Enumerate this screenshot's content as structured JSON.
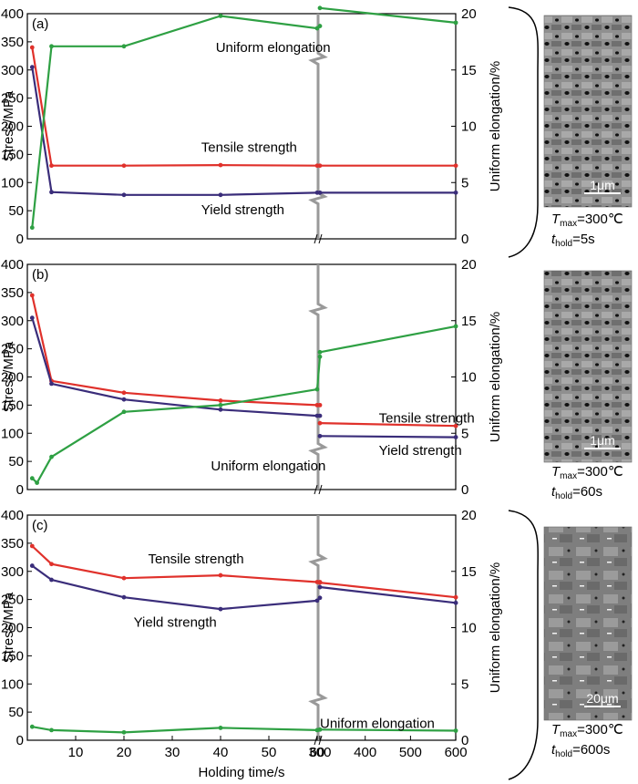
{
  "chart_data": [
    {
      "type": "line",
      "panel_label": "(a)",
      "xlabel": "",
      "ylabel_left": "Stress/MPa",
      "ylabel_right": "Uniform elongation/%",
      "ylim_left": [
        0,
        400
      ],
      "ylim_right": [
        0,
        20
      ],
      "yticks_left": [
        "0",
        "50",
        "100",
        "150",
        "200",
        "250",
        "300",
        "350",
        "400"
      ],
      "yticks_right": [
        "0",
        "5",
        "10",
        "15",
        "20"
      ],
      "series": [
        {
          "name": "Tensile strength",
          "axis": "left",
          "color": "#e0312b",
          "x": [
            1,
            5,
            20,
            40,
            60,
            300,
            600
          ],
          "values": [
            340,
            130,
            130,
            131,
            130,
            130,
            130
          ]
        },
        {
          "name": "Yield strength",
          "axis": "left",
          "color": "#3a2d7a",
          "x": [
            1,
            5,
            20,
            40,
            60,
            300,
            600
          ],
          "values": [
            305,
            83,
            78,
            78,
            82,
            82,
            82
          ]
        },
        {
          "name": "Uniform elongation",
          "axis": "right",
          "color": "#2ea043",
          "x": [
            1,
            5,
            20,
            40,
            60,
            65,
            300,
            600
          ],
          "values": [
            1,
            17.1,
            17.1,
            19.8,
            18.7,
            18.9,
            20.5,
            19.2
          ]
        }
      ],
      "annotations": [
        {
          "text": "Uniform elongation",
          "x": 39,
          "y": 340
        },
        {
          "text": "Tensile strength",
          "x": 36,
          "y": 163
        },
        {
          "text": "Yield strength",
          "x": 36,
          "y": 52
        }
      ],
      "micrograph": {
        "tmax": "300℃",
        "thold": "5s",
        "scale": "1μm"
      }
    },
    {
      "type": "line",
      "panel_label": "(b)",
      "xlabel": "",
      "ylabel_left": "Stress/MPa",
      "ylabel_right": "Uniform elongation/%",
      "ylim_left": [
        0,
        400
      ],
      "ylim_right": [
        0,
        20
      ],
      "yticks_left": [
        "0",
        "50",
        "100",
        "150",
        "200",
        "250",
        "300",
        "350",
        "400"
      ],
      "yticks_right": [
        "0",
        "5",
        "10",
        "15",
        "20"
      ],
      "series": [
        {
          "name": "Tensile strength",
          "axis": "left",
          "color": "#e0312b",
          "x": [
            1,
            5,
            20,
            40,
            60,
            65,
            300,
            600
          ],
          "values": [
            345,
            193,
            172,
            158,
            150,
            150,
            118,
            113
          ]
        },
        {
          "name": "Yield strength",
          "axis": "left",
          "color": "#3a2d7a",
          "x": [
            1,
            5,
            20,
            40,
            60,
            65,
            300,
            600
          ],
          "values": [
            305,
            188,
            160,
            142,
            131,
            131,
            95,
            93
          ]
        },
        {
          "name": "Uniform elongation",
          "axis": "right",
          "color": "#2ea043",
          "x": [
            1,
            2,
            5,
            20,
            40,
            60,
            65,
            300,
            600
          ],
          "values": [
            1,
            0.6,
            2.9,
            6.9,
            7.5,
            8.9,
            11.8,
            12.2,
            14.5
          ]
        }
      ],
      "annotations": [
        {
          "text": "Tensile strength",
          "x": 430,
          "y": 127
        },
        {
          "text": "Yield strength",
          "x": 430,
          "y": 70
        },
        {
          "text": "Uniform elongation",
          "x": 38,
          "y": 42
        }
      ],
      "micrograph": {
        "tmax": "300℃",
        "thold": "60s",
        "scale": "1μm"
      }
    },
    {
      "type": "line",
      "panel_label": "(c)",
      "xlabel": "Holding time/s",
      "ylabel_left": "Stress/MPa",
      "ylabel_right": "Uniform elongation/%",
      "ylim_left": [
        0,
        400
      ],
      "ylim_right": [
        0,
        20
      ],
      "yticks_left": [
        "0",
        "50",
        "100",
        "150",
        "200",
        "250",
        "300",
        "350",
        "400"
      ],
      "yticks_right": [
        "0",
        "5",
        "10",
        "15",
        "20"
      ],
      "xticks": [
        "10",
        "20",
        "30",
        "40",
        "50",
        "60",
        "300",
        "400",
        "500",
        "600"
      ],
      "series": [
        {
          "name": "Tensile strength",
          "axis": "left",
          "color": "#e0312b",
          "x": [
            1,
            5,
            20,
            40,
            60,
            65,
            300,
            600
          ],
          "values": [
            345,
            313,
            288,
            293,
            281,
            281,
            280,
            254
          ]
        },
        {
          "name": "Yield strength",
          "axis": "left",
          "color": "#3a2d7a",
          "x": [
            1,
            5,
            20,
            40,
            60,
            65,
            300,
            600
          ],
          "values": [
            310,
            285,
            254,
            233,
            248,
            253,
            272,
            244
          ]
        },
        {
          "name": "Uniform elongation",
          "axis": "right",
          "color": "#2ea043",
          "x": [
            1,
            5,
            20,
            40,
            60,
            65,
            300,
            600
          ],
          "values": [
            1.2,
            0.9,
            0.7,
            1.1,
            0.9,
            0.95,
            0.95,
            0.85
          ]
        }
      ],
      "annotations": [
        {
          "text": "Tensile strength",
          "x": 25,
          "y": 322
        },
        {
          "text": "Yield strength",
          "x": 22,
          "y": 210
        },
        {
          "text": "Uniform elongation",
          "x": 300,
          "y": 30
        }
      ],
      "micrograph": {
        "tmax": "300℃",
        "thold": "600s",
        "scale": "20μm"
      }
    }
  ]
}
